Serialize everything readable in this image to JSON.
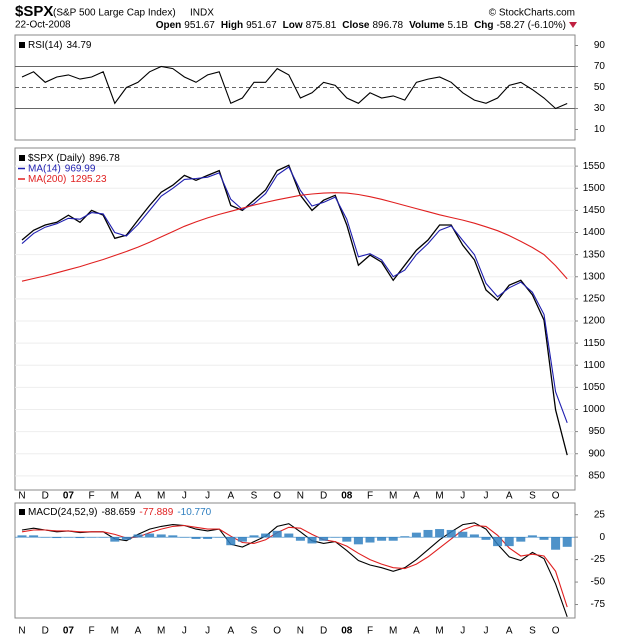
{
  "header": {
    "symbol": "$SPX",
    "name": "(S&P 500 Large Cap Index)",
    "exchange": "INDX",
    "source": "© StockCharts.com",
    "date": "22-Oct-2008",
    "quote": [
      {
        "label": "Open",
        "value": 951.67
      },
      {
        "label": "High",
        "value": 951.67
      },
      {
        "label": "Low",
        "value": 875.81
      },
      {
        "label": "Close",
        "value": 896.78
      },
      {
        "label": "Volume",
        "value": "5.1B"
      },
      {
        "label": "Chg",
        "value": "-58.27 (-6.10%)"
      }
    ]
  },
  "chart_data": [
    {
      "type": "line",
      "series": [
        {
          "name": "RSI(14)",
          "color": "#000000",
          "values": [
            60,
            65,
            55,
            60,
            62,
            58,
            60,
            65,
            35,
            50,
            55,
            65,
            70,
            68,
            60,
            55,
            62,
            65,
            35,
            40,
            55,
            55,
            68,
            62,
            40,
            45,
            55,
            52,
            40,
            35,
            45,
            40,
            42,
            38,
            55,
            58,
            60,
            55,
            45,
            38,
            35,
            40,
            52,
            55,
            48,
            40,
            30,
            34.79
          ]
        }
      ],
      "ylim": [
        0,
        100
      ],
      "yticks": [
        10,
        30,
        50,
        70,
        90
      ],
      "levels": [
        30,
        50,
        70
      ]
    },
    {
      "type": "line",
      "categories": [
        "N",
        null,
        "D",
        null,
        "07",
        null,
        "F",
        null,
        "M",
        null,
        "A",
        null,
        "M",
        null,
        "J",
        null,
        "J",
        null,
        "A",
        null,
        "S",
        null,
        "O",
        null,
        "N",
        null,
        "D",
        null,
        "08",
        null,
        "F",
        null,
        "M",
        null,
        "A",
        null,
        "M",
        null,
        "J",
        null,
        "J",
        null,
        "A",
        null,
        "S",
        null,
        "O",
        null
      ],
      "series": [
        {
          "name": "$SPX (Daily)",
          "color": "#000000",
          "values": [
            1383,
            1405,
            1417,
            1423,
            1439,
            1423,
            1450,
            1439,
            1387,
            1394,
            1428,
            1461,
            1491,
            1507,
            1529,
            1518,
            1529,
            1540,
            1461,
            1450,
            1473,
            1496,
            1540,
            1552,
            1484,
            1450,
            1473,
            1484,
            1417,
            1326,
            1349,
            1333,
            1292,
            1326,
            1360,
            1383,
            1417,
            1417,
            1371,
            1338,
            1270,
            1247,
            1281,
            1292,
            1259,
            1202,
            999,
            896.78
          ]
        },
        {
          "name": "MA(14)",
          "color": "#1f1fb0",
          "values": [
            1375,
            1398,
            1412,
            1420,
            1432,
            1430,
            1445,
            1442,
            1400,
            1392,
            1418,
            1450,
            1482,
            1500,
            1520,
            1522,
            1525,
            1535,
            1475,
            1452,
            1465,
            1488,
            1530,
            1548,
            1495,
            1460,
            1468,
            1480,
            1430,
            1345,
            1352,
            1338,
            1300,
            1315,
            1350,
            1375,
            1405,
            1415,
            1382,
            1350,
            1285,
            1255,
            1275,
            1288,
            1265,
            1215,
            1040,
            969.99
          ]
        },
        {
          "name": "MA(200)",
          "color": "#e02020",
          "values": [
            1290,
            1296,
            1302,
            1309,
            1316,
            1323,
            1331,
            1339,
            1348,
            1357,
            1367,
            1378,
            1390,
            1402,
            1414,
            1424,
            1433,
            1441,
            1448,
            1455,
            1462,
            1468,
            1474,
            1479,
            1484,
            1487,
            1489,
            1490,
            1489,
            1486,
            1481,
            1475,
            1468,
            1461,
            1454,
            1447,
            1440,
            1434,
            1428,
            1421,
            1413,
            1404,
            1393,
            1380,
            1366,
            1350,
            1325,
            1295.23
          ]
        }
      ],
      "ylim": [
        818,
        1591
      ],
      "yticks": [
        850,
        900,
        950,
        1000,
        1050,
        1100,
        1150,
        1200,
        1250,
        1300,
        1350,
        1400,
        1450,
        1500,
        1550
      ],
      "grid": true
    },
    {
      "type": "line",
      "categories": [
        "N",
        null,
        "D",
        null,
        "07",
        null,
        "F",
        null,
        "M",
        null,
        "A",
        null,
        "M",
        null,
        "J",
        null,
        "J",
        null,
        "A",
        null,
        "S",
        null,
        "O",
        null,
        "N",
        null,
        "D",
        null,
        "08",
        null,
        "F",
        null,
        "M",
        null,
        "A",
        null,
        "M",
        null,
        "J",
        null,
        "J",
        null,
        "A",
        null,
        "S",
        null,
        "O",
        null
      ],
      "series": [
        {
          "name": "MACD(24,52,9)",
          "color": "#000000",
          "values": [
            8,
            10,
            8,
            6,
            7,
            5,
            6,
            6,
            -2,
            -4,
            3,
            9,
            12,
            14,
            13,
            9,
            7,
            9,
            -8,
            -11,
            -5,
            1,
            12,
            15,
            6,
            -4,
            -7,
            -5,
            -15,
            -26,
            -31,
            -34,
            -38,
            -34,
            -25,
            -14,
            -3,
            6,
            14,
            16,
            9,
            -8,
            -22,
            -26,
            -17,
            -24,
            -52,
            -88.659
          ]
        },
        {
          "color": "#e02020",
          "values": [
            6,
            8,
            8,
            7,
            7,
            6,
            6,
            6,
            3,
            -1,
            0,
            5,
            9,
            12,
            13,
            11,
            9,
            9,
            1,
            -6,
            -7,
            -3,
            5,
            11,
            10,
            3,
            -3,
            -5,
            -10,
            -18,
            -25,
            -30,
            -34,
            -35,
            -30,
            -22,
            -12,
            -2,
            8,
            13,
            12,
            2,
            -12,
            -21,
            -19,
            -21,
            -38,
            -77.889
          ]
        },
        {
          "type": "bar",
          "color": "#2f7fc0",
          "last_label": "-10.770",
          "values": [
            2,
            2,
            0,
            -1,
            0,
            -1,
            0,
            0,
            -5,
            -3,
            3,
            4,
            3,
            2,
            0,
            -2,
            -2,
            0,
            -9,
            -5,
            2,
            4,
            7,
            4,
            -4,
            -7,
            -4,
            0,
            -5,
            -8,
            -6,
            -4,
            -4,
            1,
            5,
            8,
            9,
            8,
            6,
            3,
            -3,
            -10,
            -10,
            -5,
            2,
            -3,
            -14,
            -10.77
          ]
        }
      ],
      "ylim": [
        -90,
        38
      ],
      "yticks": [
        25,
        0,
        -25,
        -50,
        -75
      ]
    }
  ]
}
